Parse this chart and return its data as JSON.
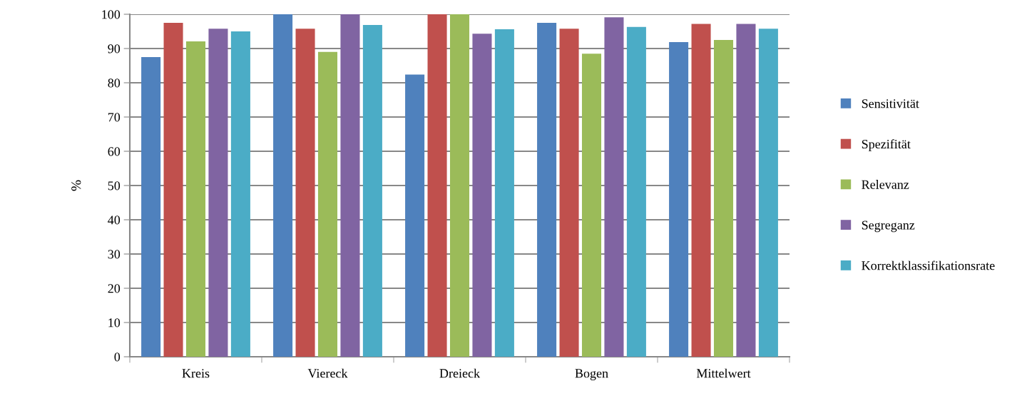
{
  "chart_data": {
    "type": "bar",
    "ylabel": "%",
    "categories": [
      "Kreis",
      "Viereck",
      "Dreieck",
      "Bogen",
      "Mittelwert"
    ],
    "series": [
      {
        "name": "Sensitivität",
        "color": "#4f81bd",
        "values": [
          87.5,
          100,
          82.4,
          97.5,
          91.9
        ]
      },
      {
        "name": "Spezifität",
        "color": "#c0504d",
        "values": [
          97.5,
          95.8,
          100,
          95.8,
          97.2
        ]
      },
      {
        "name": "Relevanz",
        "color": "#9bbb59",
        "values": [
          92.1,
          89.0,
          100,
          88.5,
          92.5
        ]
      },
      {
        "name": "Segreganz",
        "color": "#8064a2",
        "values": [
          95.8,
          100,
          94.3,
          99.1,
          97.2
        ]
      },
      {
        "name": "Korrektklassifikationsrate",
        "color": "#4bacc6",
        "values": [
          95.0,
          96.9,
          95.6,
          96.3,
          95.8
        ]
      }
    ],
    "ylim": [
      0,
      100
    ],
    "yticks": [
      0,
      10,
      20,
      30,
      40,
      50,
      60,
      70,
      80,
      90,
      100
    ],
    "grid": "y",
    "legend": "right"
  }
}
